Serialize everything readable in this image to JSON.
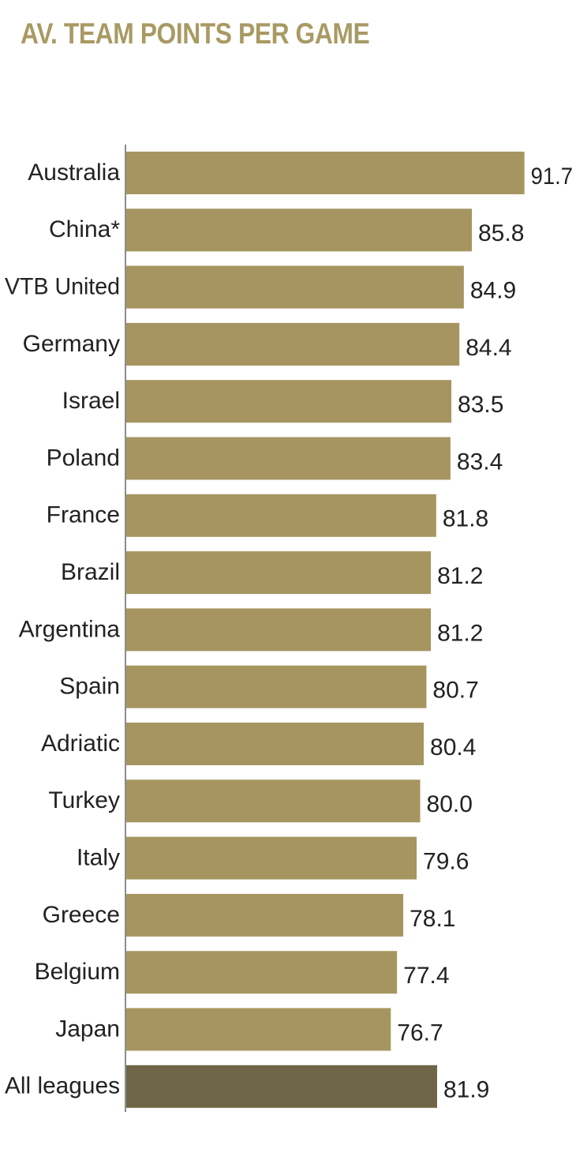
{
  "title": "AV. TEAM POINTS PER GAME",
  "colors": {
    "bar": "#a69560",
    "highlight_bar": "#6f6648",
    "title": "#a89a63",
    "axis": "#8c8c8c",
    "text": "#222222"
  },
  "chart_data": {
    "type": "bar",
    "orientation": "horizontal",
    "title": "AV. TEAM POINTS PER GAME",
    "categories": [
      "Australia",
      "China*",
      "VTB United",
      "Germany",
      "Israel",
      "Poland",
      "France",
      "Brazil",
      "Argentina",
      "Spain",
      "Adriatic",
      "Turkey",
      "Italy",
      "Greece",
      "Belgium",
      "Japan",
      "All leagues"
    ],
    "values": [
      91.7,
      85.8,
      84.9,
      84.4,
      83.5,
      83.4,
      81.8,
      81.2,
      81.2,
      80.7,
      80.4,
      80.0,
      79.6,
      78.1,
      77.4,
      76.7,
      81.9
    ],
    "value_labels": [
      "91.7",
      "85.8",
      "84.9",
      "84.4",
      "83.5",
      "83.4",
      "81.8",
      "81.2",
      "81.2",
      "80.7",
      "80.4",
      "80.0",
      "79.6",
      "78.1",
      "77.4",
      "76.7",
      "81.9"
    ],
    "highlight": "All leagues",
    "xlim": [
      47,
      92
    ],
    "xlabel": "",
    "ylabel": "",
    "grid": false,
    "legend": "none"
  }
}
